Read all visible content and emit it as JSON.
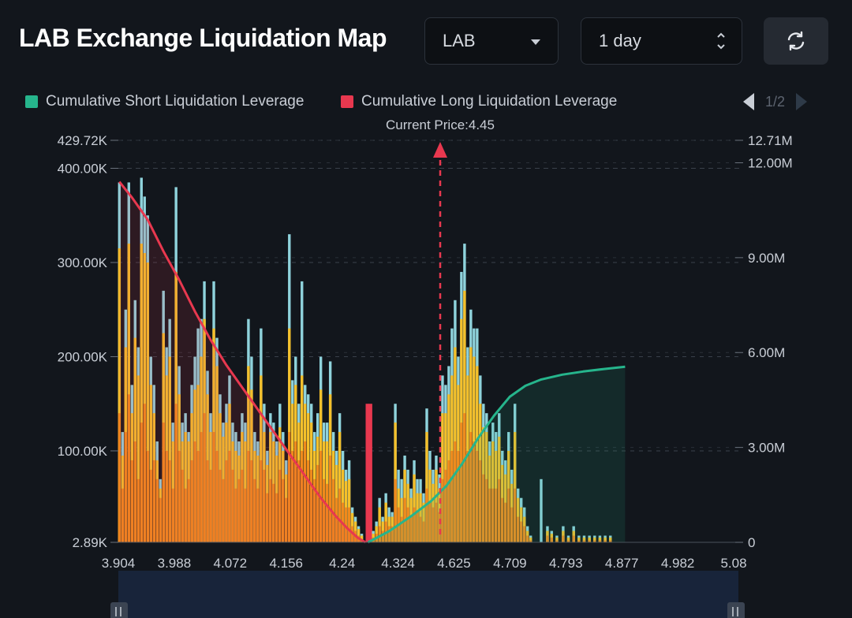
{
  "header": {
    "title": "LAB Exchange Liquidation Map",
    "asset_select": "LAB",
    "period_select": "1 day"
  },
  "legend": {
    "short_label": "Cumulative Short Liquidation Leverage",
    "long_label": "Cumulative Long Liquidation Leverage",
    "page": "1/2"
  },
  "colors": {
    "short": "#26b58c",
    "long": "#e8384f",
    "bar_orange": "#f08a1c",
    "bar_yellow": "#f5c02a",
    "bar_cyan": "#8fd3dc",
    "background": "#12161c"
  },
  "chart_data": {
    "type": "bar",
    "annotation": "Current Price:4.45",
    "current_price": 4.45,
    "x_tick_labels": [
      "3.904",
      "3.988",
      "4.072",
      "4.156",
      "4.24",
      "4.324",
      "4.625",
      "4.709",
      "4.793",
      "4.877",
      "4.982",
      "5.08"
    ],
    "x_range": [
      3.904,
      5.08
    ],
    "left_axis": {
      "range": [
        2890,
        429720
      ],
      "tick_values": [
        2890,
        100000,
        200000,
        300000,
        400000,
        429720
      ],
      "tick_labels": [
        "2.89K",
        "100.00K",
        "200.00K",
        "300.00K",
        "400.00K",
        "429.72K"
      ]
    },
    "right_axis": {
      "range": [
        0,
        12710000
      ],
      "tick_values": [
        0,
        3000000,
        6000000,
        9000000,
        12000000,
        12710000
      ],
      "tick_labels": [
        "0",
        "3.00M",
        "6.00M",
        "9.00M",
        "12.00M",
        "12.71M"
      ]
    },
    "bars": [
      [
        3.906,
        385000,
        315000,
        140000
      ],
      [
        3.912,
        120000,
        95000,
        60000
      ],
      [
        3.918,
        250000,
        210000,
        120000
      ],
      [
        3.924,
        385000,
        320000,
        160000
      ],
      [
        3.93,
        170000,
        140000,
        90000
      ],
      [
        3.936,
        260000,
        220000,
        110000
      ],
      [
        3.942,
        210000,
        180000,
        70000
      ],
      [
        3.948,
        390000,
        320000,
        130000
      ],
      [
        3.954,
        370000,
        310000,
        150000
      ],
      [
        3.96,
        350000,
        300000,
        100000
      ],
      [
        3.966,
        200000,
        170000,
        80000
      ],
      [
        3.972,
        170000,
        140000,
        90000
      ],
      [
        3.978,
        110000,
        90000,
        70000
      ],
      [
        3.984,
        70000,
        60000,
        50000
      ],
      [
        3.99,
        270000,
        225000,
        130000
      ],
      [
        3.996,
        210000,
        180000,
        100000
      ],
      [
        4.002,
        240000,
        200000,
        90000
      ],
      [
        4.008,
        130000,
        110000,
        60000
      ],
      [
        4.014,
        380000,
        290000,
        150000
      ],
      [
        4.02,
        190000,
        160000,
        100000
      ],
      [
        4.026,
        130000,
        110000,
        80000
      ],
      [
        4.032,
        140000,
        120000,
        60000
      ],
      [
        4.038,
        120000,
        110000,
        70000
      ],
      [
        4.044,
        170000,
        140000,
        90000
      ],
      [
        4.05,
        200000,
        165000,
        110000
      ],
      [
        4.056,
        230000,
        170000,
        100000
      ],
      [
        4.062,
        240000,
        200000,
        120000
      ],
      [
        4.068,
        280000,
        240000,
        140000
      ],
      [
        4.074,
        185000,
        160000,
        90000
      ],
      [
        4.08,
        140000,
        120000,
        80000
      ],
      [
        4.086,
        280000,
        230000,
        120000
      ],
      [
        4.092,
        220000,
        190000,
        100000
      ],
      [
        4.098,
        160000,
        140000,
        80000
      ],
      [
        4.104,
        130000,
        115000,
        70000
      ],
      [
        4.11,
        150000,
        130000,
        90000
      ],
      [
        4.116,
        180000,
        150000,
        100000
      ],
      [
        4.122,
        130000,
        110000,
        80000
      ],
      [
        4.128,
        120000,
        100000,
        60000
      ],
      [
        4.134,
        110000,
        95000,
        70000
      ],
      [
        4.14,
        140000,
        120000,
        80000
      ],
      [
        4.146,
        130000,
        110000,
        60000
      ],
      [
        4.152,
        240000,
        190000,
        100000
      ],
      [
        4.158,
        200000,
        165000,
        90000
      ],
      [
        4.164,
        120000,
        100000,
        70000
      ],
      [
        4.17,
        110000,
        95000,
        60000
      ],
      [
        4.176,
        230000,
        180000,
        90000
      ],
      [
        4.182,
        150000,
        120000,
        80000
      ],
      [
        4.188,
        100000,
        85000,
        55000
      ],
      [
        4.194,
        140000,
        120000,
        70000
      ],
      [
        4.2,
        130000,
        110000,
        65000
      ],
      [
        4.206,
        110000,
        95000,
        55000
      ],
      [
        4.212,
        150000,
        125000,
        80000
      ],
      [
        4.218,
        120000,
        100000,
        70000
      ],
      [
        4.224,
        90000,
        75000,
        50000
      ],
      [
        4.23,
        330000,
        230000,
        120000
      ],
      [
        4.236,
        175000,
        150000,
        100000
      ],
      [
        4.242,
        200000,
        170000,
        110000
      ],
      [
        4.248,
        150000,
        130000,
        90000
      ],
      [
        4.254,
        280000,
        180000,
        100000
      ],
      [
        4.26,
        170000,
        150000,
        110000
      ],
      [
        4.266,
        160000,
        140000,
        90000
      ],
      [
        4.272,
        150000,
        130000,
        80000
      ],
      [
        4.278,
        120000,
        100000,
        70000
      ],
      [
        4.284,
        140000,
        115000,
        85000
      ],
      [
        4.29,
        200000,
        165000,
        100000
      ],
      [
        4.296,
        130000,
        110000,
        70000
      ],
      [
        4.302,
        130000,
        110000,
        65000
      ],
      [
        4.308,
        195000,
        160000,
        95000
      ],
      [
        4.314,
        120000,
        100000,
        70000
      ],
      [
        4.32,
        100000,
        85000,
        50000
      ],
      [
        4.326,
        140000,
        120000,
        60000
      ],
      [
        4.332,
        100000,
        80000,
        45000
      ],
      [
        4.338,
        80000,
        68000,
        40000
      ],
      [
        4.344,
        90000,
        70000,
        40000
      ],
      [
        4.35,
        40000,
        34000,
        20000
      ],
      [
        4.356,
        30000,
        25000,
        15000
      ],
      [
        4.362,
        20000,
        17000,
        10000
      ],
      [
        4.368,
        12000,
        10000,
        6000
      ],
      [
        4.378,
        150000,
        150000,
        150000
      ],
      [
        4.384,
        150000,
        150000,
        150000
      ],
      [
        4.39,
        15000,
        12000,
        8000
      ],
      [
        4.396,
        25000,
        20000,
        12000
      ],
      [
        4.402,
        50000,
        40000,
        20000
      ],
      [
        4.408,
        30000,
        25000,
        15000
      ],
      [
        4.414,
        55000,
        45000,
        25000
      ],
      [
        4.42,
        40000,
        30000,
        20000
      ],
      [
        4.426,
        35000,
        30000,
        20000
      ],
      [
        4.432,
        150000,
        130000,
        70000
      ],
      [
        4.438,
        80000,
        60000,
        40000
      ],
      [
        4.444,
        70000,
        50000,
        30000
      ],
      [
        4.45,
        95000,
        80000,
        50000
      ],
      [
        4.456,
        80000,
        65000,
        40000
      ],
      [
        4.462,
        60000,
        50000,
        30000
      ],
      [
        4.468,
        90000,
        75000,
        40000
      ],
      [
        4.474,
        70000,
        55000,
        35000
      ],
      [
        4.48,
        70000,
        55000,
        30000
      ],
      [
        4.486,
        55000,
        45000,
        25000
      ],
      [
        4.492,
        145000,
        120000,
        60000
      ],
      [
        4.498,
        100000,
        80000,
        45000
      ],
      [
        4.504,
        80000,
        65000,
        40000
      ],
      [
        4.51,
        95000,
        80000,
        45000
      ],
      [
        4.516,
        75000,
        60000,
        35000
      ],
      [
        4.522,
        180000,
        140000,
        70000
      ],
      [
        4.528,
        170000,
        140000,
        80000
      ],
      [
        4.534,
        190000,
        160000,
        90000
      ],
      [
        4.54,
        230000,
        180000,
        100000
      ],
      [
        4.546,
        260000,
        210000,
        110000
      ],
      [
        4.552,
        200000,
        170000,
        100000
      ],
      [
        4.558,
        290000,
        240000,
        130000
      ],
      [
        4.564,
        320000,
        270000,
        140000
      ],
      [
        4.57,
        210000,
        180000,
        100000
      ],
      [
        4.576,
        250000,
        210000,
        120000
      ],
      [
        4.582,
        230000,
        200000,
        110000
      ],
      [
        4.588,
        230000,
        190000,
        100000
      ],
      [
        4.594,
        180000,
        150000,
        90000
      ],
      [
        4.6,
        150000,
        125000,
        75000
      ],
      [
        4.606,
        140000,
        120000,
        70000
      ],
      [
        4.612,
        110000,
        95000,
        60000
      ],
      [
        4.618,
        130000,
        110000,
        60000
      ],
      [
        4.624,
        120000,
        100000,
        60000
      ],
      [
        4.63,
        140000,
        115000,
        70000
      ],
      [
        4.636,
        100000,
        85000,
        50000
      ],
      [
        4.642,
        90000,
        75000,
        45000
      ],
      [
        4.648,
        120000,
        100000,
        60000
      ],
      [
        4.654,
        80000,
        65000,
        40000
      ],
      [
        4.66,
        150000,
        120000,
        60000
      ],
      [
        4.666,
        60000,
        50000,
        30000
      ],
      [
        4.672,
        50000,
        40000,
        25000
      ],
      [
        4.678,
        40000,
        30000,
        20000
      ],
      [
        4.684,
        20000,
        15000,
        10000
      ],
      [
        4.69,
        10000,
        8000,
        5000
      ],
      [
        4.71,
        70000,
        0,
        0
      ],
      [
        4.722,
        20000,
        15000,
        10000
      ],
      [
        4.73,
        15000,
        12000,
        8000
      ],
      [
        4.74,
        10000,
        8000,
        5000
      ],
      [
        4.752,
        20000,
        15000,
        10000
      ],
      [
        4.762,
        10000,
        8000,
        5000
      ],
      [
        4.772,
        20000,
        15000,
        10000
      ],
      [
        4.782,
        10000,
        8000,
        5000
      ],
      [
        4.792,
        10000,
        8000,
        5000
      ],
      [
        4.802,
        10000,
        8000,
        5000
      ],
      [
        4.812,
        10000,
        8000,
        5000
      ],
      [
        4.822,
        10000,
        8000,
        5000
      ],
      [
        4.832,
        10000,
        8000,
        5000
      ],
      [
        4.842,
        10000,
        8000,
        5000
      ]
    ],
    "series": [
      {
        "name": "Cumulative Long Liquidation Leverage",
        "points": [
          [
            3.906,
            11.4
          ],
          [
            3.93,
            10.9
          ],
          [
            3.96,
            10.2
          ],
          [
            3.99,
            9.2
          ],
          [
            4.02,
            8.3
          ],
          [
            4.05,
            7.3
          ],
          [
            4.08,
            6.4
          ],
          [
            4.11,
            5.6
          ],
          [
            4.14,
            4.9
          ],
          [
            4.17,
            4.2
          ],
          [
            4.2,
            3.5
          ],
          [
            4.23,
            2.8
          ],
          [
            4.26,
            2.1
          ],
          [
            4.29,
            1.4
          ],
          [
            4.32,
            0.8
          ],
          [
            4.34,
            0.45
          ],
          [
            4.36,
            0.15
          ],
          [
            4.375,
            0.0
          ]
        ]
      },
      {
        "name": "Cumulative Short Liquidation Leverage",
        "points": [
          [
            4.38,
            0.0
          ],
          [
            4.42,
            0.35
          ],
          [
            4.46,
            0.8
          ],
          [
            4.5,
            1.3
          ],
          [
            4.53,
            1.8
          ],
          [
            4.56,
            2.5
          ],
          [
            4.59,
            3.3
          ],
          [
            4.62,
            4.0
          ],
          [
            4.65,
            4.6
          ],
          [
            4.68,
            4.95
          ],
          [
            4.71,
            5.15
          ],
          [
            4.75,
            5.3
          ],
          [
            4.79,
            5.4
          ],
          [
            4.83,
            5.48
          ],
          [
            4.87,
            5.55
          ]
        ]
      }
    ]
  }
}
